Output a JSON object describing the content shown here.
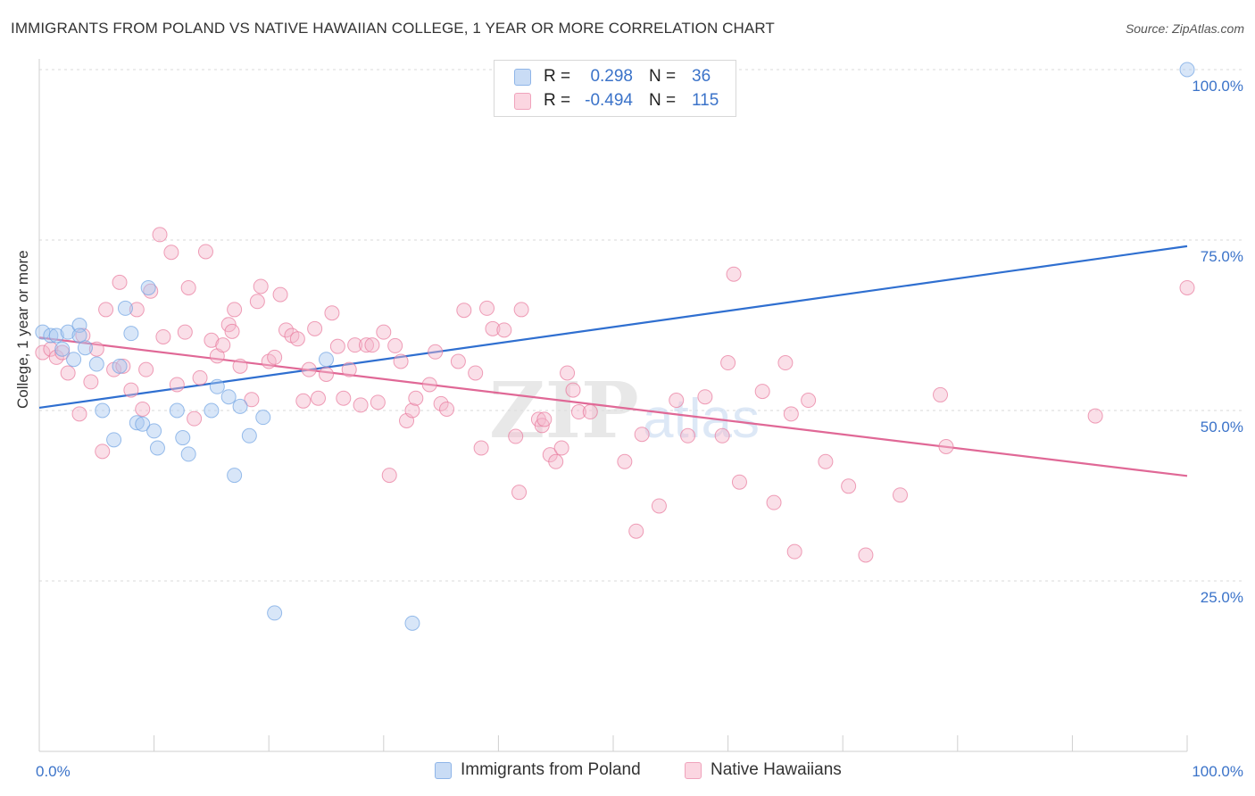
{
  "header": {
    "title": "IMMIGRANTS FROM POLAND VS NATIVE HAWAIIAN COLLEGE, 1 YEAR OR MORE CORRELATION CHART",
    "source": "Source: ZipAtlas.com"
  },
  "watermark": {
    "zip": "ZIP",
    "atlas": "atlas"
  },
  "legend_top": {
    "rows": [
      {
        "r_label": "R =",
        "r_value": "0.298",
        "n_label": "N =",
        "n_value": "36",
        "color": "#a9c8ef"
      },
      {
        "r_label": "R =",
        "r_value": "-0.494",
        "n_label": "N =",
        "n_value": "115",
        "color": "#f5b8cb"
      }
    ]
  },
  "legend_bottom": {
    "items": [
      {
        "label": "Immigrants from Poland",
        "color": "#a9c8ef"
      },
      {
        "label": "Native Hawaiians",
        "color": "#f5b8cb"
      }
    ]
  },
  "chart_data": {
    "type": "scatter",
    "title": "IMMIGRANTS FROM POLAND VS NATIVE HAWAIIAN COLLEGE, 1 YEAR OR MORE CORRELATION CHART",
    "xlabel": "",
    "ylabel": "College, 1 year or more",
    "xlim": [
      0,
      100
    ],
    "ylim": [
      0,
      100
    ],
    "x_tick_labels": [
      {
        "value": 0,
        "label": "0.0%"
      },
      {
        "value": 100,
        "label": "100.0%"
      }
    ],
    "y_tick_labels": [
      {
        "value": 25,
        "label": "25.0%"
      },
      {
        "value": 50,
        "label": "50.0%"
      },
      {
        "value": 75,
        "label": "75.0%"
      },
      {
        "value": 100,
        "label": "100.0%"
      }
    ],
    "grid": "horizontal-dashed",
    "legend_position": "top-center",
    "series": [
      {
        "name": "Immigrants from Poland",
        "color": "#6fa3e3",
        "fill": "#a9c8ef",
        "trend": {
          "x": [
            0,
            100
          ],
          "y": [
            50.4,
            74.1
          ]
        },
        "points": [
          [
            0.3,
            61.5
          ],
          [
            1.0,
            61.0
          ],
          [
            1.5,
            61.0
          ],
          [
            2.0,
            59.0
          ],
          [
            2.5,
            61.5
          ],
          [
            3.0,
            57.5
          ],
          [
            3.5,
            62.5
          ],
          [
            3.5,
            61.0
          ],
          [
            4.0,
            59.2
          ],
          [
            5.0,
            56.8
          ],
          [
            5.5,
            50.0
          ],
          [
            6.5,
            45.7
          ],
          [
            7.0,
            56.5
          ],
          [
            7.5,
            65.0
          ],
          [
            8.0,
            61.3
          ],
          [
            8.5,
            48.2
          ],
          [
            9.0,
            48.0
          ],
          [
            9.5,
            68.0
          ],
          [
            10.0,
            47.0
          ],
          [
            10.3,
            44.5
          ],
          [
            12.0,
            50.0
          ],
          [
            12.5,
            46.0
          ],
          [
            13.0,
            43.6
          ],
          [
            15.0,
            50.0
          ],
          [
            15.5,
            53.5
          ],
          [
            16.5,
            52.0
          ],
          [
            17.0,
            40.5
          ],
          [
            17.5,
            50.6
          ],
          [
            18.3,
            46.3
          ],
          [
            19.5,
            49.0
          ],
          [
            20.5,
            20.3
          ],
          [
            25.0,
            57.5
          ],
          [
            32.5,
            18.8
          ],
          [
            100.0,
            100.0
          ]
        ]
      },
      {
        "name": "Native Hawaiians",
        "color": "#e8779b",
        "fill": "#f5b8cb",
        "trend": {
          "x": [
            0,
            100
          ],
          "y": [
            60.7,
            40.4
          ]
        },
        "points": [
          [
            0.3,
            58.5
          ],
          [
            1.0,
            59.0
          ],
          [
            1.5,
            57.8
          ],
          [
            2.0,
            58.5
          ],
          [
            2.5,
            55.5
          ],
          [
            3.5,
            49.5
          ],
          [
            3.8,
            61.0
          ],
          [
            4.5,
            54.2
          ],
          [
            5.0,
            59.0
          ],
          [
            5.5,
            44.0
          ],
          [
            5.8,
            64.8
          ],
          [
            6.5,
            56.0
          ],
          [
            7.0,
            68.8
          ],
          [
            7.3,
            56.5
          ],
          [
            8.0,
            53.0
          ],
          [
            8.5,
            64.8
          ],
          [
            9.0,
            50.2
          ],
          [
            9.3,
            56.0
          ],
          [
            9.7,
            67.5
          ],
          [
            10.5,
            75.8
          ],
          [
            10.8,
            60.8
          ],
          [
            11.5,
            73.2
          ],
          [
            12.0,
            53.8
          ],
          [
            12.7,
            61.5
          ],
          [
            13.0,
            68.0
          ],
          [
            13.5,
            48.8
          ],
          [
            14.0,
            54.8
          ],
          [
            14.5,
            73.3
          ],
          [
            15.0,
            60.3
          ],
          [
            15.5,
            58.0
          ],
          [
            16.0,
            59.6
          ],
          [
            16.5,
            62.6
          ],
          [
            16.8,
            61.6
          ],
          [
            17.0,
            64.8
          ],
          [
            17.5,
            56.5
          ],
          [
            18.5,
            51.6
          ],
          [
            19.0,
            66.0
          ],
          [
            19.3,
            68.2
          ],
          [
            20.0,
            57.2
          ],
          [
            20.5,
            57.8
          ],
          [
            21.0,
            67.0
          ],
          [
            21.5,
            61.8
          ],
          [
            22.0,
            61.0
          ],
          [
            22.5,
            60.5
          ],
          [
            23.0,
            51.4
          ],
          [
            23.5,
            56.0
          ],
          [
            24.0,
            62.0
          ],
          [
            24.3,
            51.8
          ],
          [
            25.0,
            55.3
          ],
          [
            25.5,
            64.3
          ],
          [
            26.0,
            59.4
          ],
          [
            26.5,
            51.8
          ],
          [
            27.0,
            56.0
          ],
          [
            27.5,
            59.6
          ],
          [
            28.0,
            50.8
          ],
          [
            28.5,
            59.6
          ],
          [
            29.0,
            59.6
          ],
          [
            29.5,
            51.2
          ],
          [
            30.0,
            61.5
          ],
          [
            30.5,
            40.5
          ],
          [
            31.0,
            59.5
          ],
          [
            31.5,
            57.2
          ],
          [
            32.0,
            48.5
          ],
          [
            32.5,
            50.0
          ],
          [
            32.8,
            51.8
          ],
          [
            34.0,
            53.8
          ],
          [
            34.5,
            58.6
          ],
          [
            35.0,
            51.0
          ],
          [
            35.5,
            50.2
          ],
          [
            36.5,
            57.2
          ],
          [
            37.0,
            64.7
          ],
          [
            38.0,
            55.5
          ],
          [
            38.5,
            44.5
          ],
          [
            39.0,
            65.0
          ],
          [
            39.5,
            62.0
          ],
          [
            40.5,
            61.8
          ],
          [
            41.5,
            46.2
          ],
          [
            41.8,
            38.0
          ],
          [
            42.0,
            64.8
          ],
          [
            43.5,
            48.7
          ],
          [
            43.8,
            47.8
          ],
          [
            44.0,
            48.7
          ],
          [
            44.5,
            43.5
          ],
          [
            45.0,
            42.5
          ],
          [
            45.5,
            44.5
          ],
          [
            46.0,
            55.5
          ],
          [
            46.5,
            53.0
          ],
          [
            47.0,
            49.8
          ],
          [
            48.0,
            49.8
          ],
          [
            51.0,
            42.5
          ],
          [
            52.0,
            32.3
          ],
          [
            52.5,
            46.5
          ],
          [
            54.0,
            36.0
          ],
          [
            55.5,
            51.5
          ],
          [
            56.5,
            46.3
          ],
          [
            58.0,
            52.0
          ],
          [
            59.5,
            46.3
          ],
          [
            60.0,
            57.0
          ],
          [
            60.5,
            70.0
          ],
          [
            61.0,
            39.5
          ],
          [
            63.0,
            52.8
          ],
          [
            64.0,
            36.5
          ],
          [
            65.0,
            57.0
          ],
          [
            65.5,
            49.5
          ],
          [
            65.8,
            29.3
          ],
          [
            67.0,
            51.5
          ],
          [
            68.5,
            42.5
          ],
          [
            70.5,
            38.9
          ],
          [
            72.0,
            28.8
          ],
          [
            75.0,
            37.6
          ],
          [
            78.5,
            52.3
          ],
          [
            79.0,
            44.7
          ],
          [
            92.0,
            49.2
          ],
          [
            100.0,
            68.0
          ]
        ]
      }
    ]
  }
}
